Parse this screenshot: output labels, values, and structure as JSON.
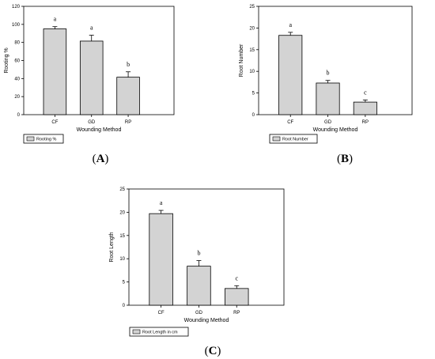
{
  "chart_data": [
    {
      "type": "bar",
      "panel_label": "A",
      "categories": [
        "CF",
        "GD",
        "RP"
      ],
      "values": [
        95,
        81.5,
        41.5
      ],
      "errors": [
        2.5,
        6.5,
        6
      ],
      "letters": [
        "a",
        "a",
        "b"
      ],
      "xlabel": "Wounding Method",
      "ylabel": "Rooting %",
      "ylim": [
        0,
        120
      ],
      "yticks": [
        0,
        20,
        40,
        60,
        80,
        100,
        120
      ],
      "legend": "Rooting %",
      "legend_position": "bottom-left"
    },
    {
      "type": "bar",
      "panel_label": "B",
      "categories": [
        "CF",
        "GD",
        "RP"
      ],
      "values": [
        18.3,
        7.3,
        2.9
      ],
      "errors": [
        0.7,
        0.6,
        0.5
      ],
      "letters": [
        "a",
        "b",
        "c"
      ],
      "xlabel": "Wounding Method",
      "ylabel": "Root Number",
      "ylim": [
        0,
        25
      ],
      "yticks": [
        0,
        5,
        10,
        15,
        20,
        25
      ],
      "legend": "Root Number",
      "legend_position": "bottom-left"
    },
    {
      "type": "bar",
      "panel_label": "C",
      "categories": [
        "CF",
        "GD",
        "RP"
      ],
      "values": [
        19.7,
        8.4,
        3.6
      ],
      "errors": [
        0.7,
        1.2,
        0.6
      ],
      "letters": [
        "a",
        "b",
        "c"
      ],
      "xlabel": "Wounding Method",
      "ylabel": "Root Length",
      "ylim": [
        0,
        25
      ],
      "yticks": [
        0,
        5,
        10,
        15,
        20,
        25
      ],
      "legend": "Root Length in cm",
      "legend_position": "bottom-left"
    }
  ],
  "colors": {
    "bar_fill": "#d3d3d3",
    "stroke": "#000000"
  }
}
